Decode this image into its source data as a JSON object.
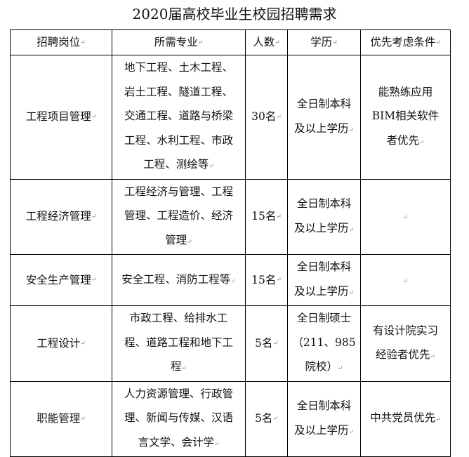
{
  "title": "2020届高校毕业生校园招聘需求",
  "headers": [
    "招聘岗位",
    "所需专业",
    "人数",
    "学历",
    "优先考虑条件"
  ],
  "rows": [
    {
      "position": "工程项目管理",
      "majors": [
        "地下工程、土木工程、",
        "岩土工程、隧道工程、",
        "交通工程、道路与桥梁",
        "工程、水利工程、市政",
        "工程、测绘等"
      ],
      "count": "30名",
      "education": [
        "全日制本科",
        "及以上学历"
      ],
      "preference": [
        "能熟练应用",
        "BIM相关软件",
        "者优先"
      ]
    },
    {
      "position": "工程经济管理",
      "majors": [
        "工程经济与管理、工程",
        "管理、工程造价、经济",
        "管理"
      ],
      "count": "15名",
      "education": [
        "全日制本科",
        "及以上学历"
      ],
      "preference": [
        ""
      ]
    },
    {
      "position": "安全生产管理",
      "majors": [
        "安全工程、消防工程等"
      ],
      "count": "15名",
      "education": [
        "全日制本科",
        "及以上学历"
      ],
      "preference": [
        ""
      ]
    },
    {
      "position": "工程设计",
      "majors": [
        "市政工程、给排水工",
        "程、道路工程和地下工",
        "程"
      ],
      "count": "5名",
      "education": [
        "全日制硕士",
        "（211、985",
        "院校）"
      ],
      "preference": [
        "有设计院实习",
        "经验者优先"
      ]
    },
    {
      "position": "职能管理",
      "majors": [
        "人力资源管理、行政管",
        "理、新闻与传媒、汉语",
        "言文学、会计学"
      ],
      "count": "5名",
      "education": [
        "全日制本科",
        "及以上学历"
      ],
      "preference": [
        "中共党员优先"
      ]
    }
  ]
}
